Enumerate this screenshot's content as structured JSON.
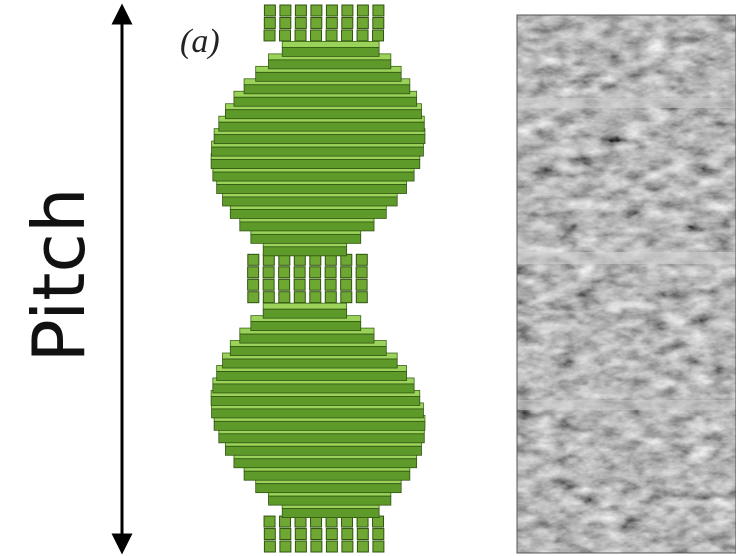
{
  "labels": {
    "pitch": "Pitch",
    "panel": "(a)"
  }
}
